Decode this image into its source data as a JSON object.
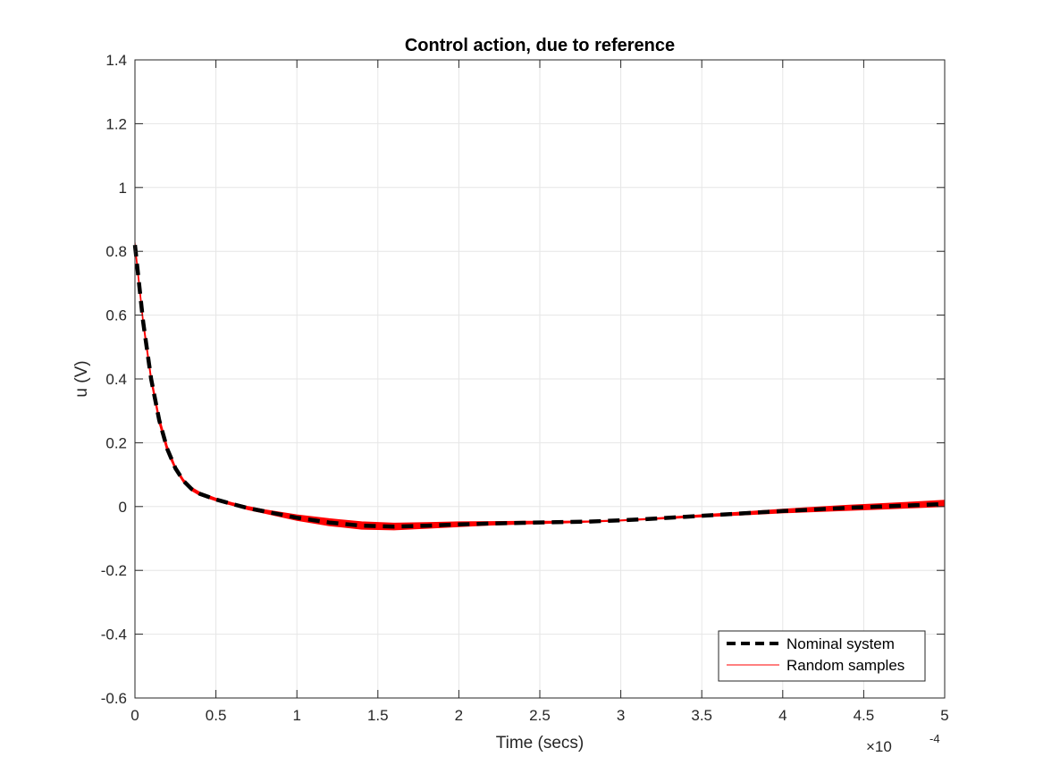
{
  "chart_data": {
    "type": "line",
    "title": "Control action, due to reference",
    "xlabel": "Time (secs)",
    "ylabel": "u (V)",
    "x_exponent_mark": "×10",
    "x_exponent_power": "-4",
    "xlim": [
      0,
      5
    ],
    "ylim": [
      -0.6,
      1.4
    ],
    "x_scale_note": "x values in units of 1e-4 s",
    "xticks": [
      "0",
      "0.5",
      "1",
      "1.5",
      "2",
      "2.5",
      "3",
      "3.5",
      "4",
      "4.5",
      "5"
    ],
    "yticks": [
      "-0.6",
      "-0.4",
      "-0.2",
      "0",
      "0.2",
      "0.4",
      "0.6",
      "0.8",
      "1",
      "1.2",
      "1.4"
    ],
    "grid": true,
    "legend_position": "bottom-right",
    "series": [
      {
        "name": "Nominal system",
        "color": "#000000",
        "style": "dashed",
        "x": [
          0,
          0.05,
          0.1,
          0.15,
          0.2,
          0.25,
          0.3,
          0.35,
          0.4,
          0.5,
          0.6,
          0.7,
          0.8,
          0.9,
          1.0,
          1.2,
          1.4,
          1.6,
          1.8,
          2.0,
          2.2,
          2.4,
          2.6,
          2.8,
          3.0,
          3.2,
          3.4,
          3.6,
          3.8,
          4.0,
          4.2,
          4.4,
          4.6,
          4.8,
          5.0
        ],
        "y": [
          0.82,
          0.58,
          0.4,
          0.27,
          0.18,
          0.12,
          0.08,
          0.055,
          0.04,
          0.022,
          0.008,
          -0.005,
          -0.015,
          -0.025,
          -0.035,
          -0.05,
          -0.06,
          -0.063,
          -0.06,
          -0.056,
          -0.053,
          -0.051,
          -0.049,
          -0.047,
          -0.043,
          -0.038,
          -0.032,
          -0.026,
          -0.02,
          -0.014,
          -0.009,
          -0.004,
          0.0,
          0.004,
          0.008
        ]
      },
      {
        "name": "Random samples",
        "color": "#ff0000",
        "style": "solid",
        "x": [
          0,
          0.05,
          0.1,
          0.15,
          0.2,
          0.25,
          0.3,
          0.35,
          0.4,
          0.5,
          0.6,
          0.7,
          0.8,
          0.9,
          1.0,
          1.2,
          1.4,
          1.6,
          1.8,
          2.0,
          2.2,
          2.4,
          2.6,
          2.8,
          3.0,
          3.2,
          3.4,
          3.6,
          3.8,
          4.0,
          4.2,
          4.4,
          4.6,
          4.8,
          5.0
        ],
        "y_upper": [
          0.83,
          0.59,
          0.41,
          0.28,
          0.19,
          0.125,
          0.085,
          0.06,
          0.045,
          0.026,
          0.012,
          0.0,
          -0.01,
          -0.018,
          -0.026,
          -0.038,
          -0.048,
          -0.052,
          -0.05,
          -0.048,
          -0.047,
          -0.046,
          -0.046,
          -0.045,
          -0.042,
          -0.036,
          -0.029,
          -0.022,
          -0.015,
          -0.008,
          -0.002,
          0.004,
          0.009,
          0.014,
          0.02
        ],
        "y_lower": [
          0.81,
          0.57,
          0.39,
          0.26,
          0.17,
          0.115,
          0.075,
          0.05,
          0.035,
          0.018,
          0.004,
          -0.01,
          -0.021,
          -0.032,
          -0.043,
          -0.06,
          -0.071,
          -0.073,
          -0.068,
          -0.063,
          -0.058,
          -0.055,
          -0.052,
          -0.049,
          -0.045,
          -0.04,
          -0.035,
          -0.03,
          -0.025,
          -0.02,
          -0.016,
          -0.012,
          -0.008,
          -0.004,
          0.0
        ]
      }
    ]
  }
}
